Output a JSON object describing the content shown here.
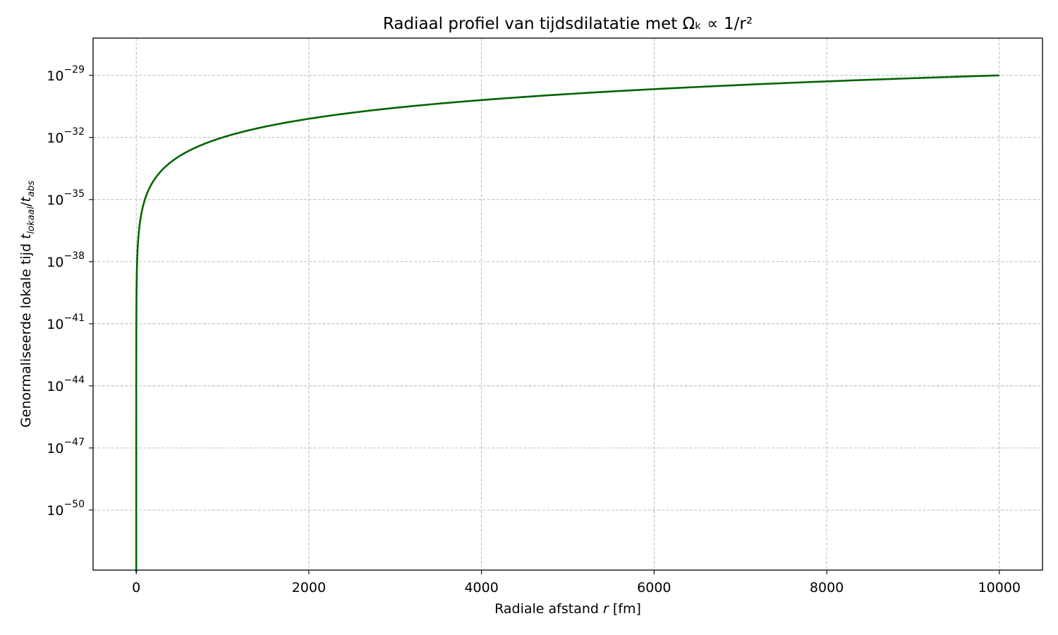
{
  "chart_data": {
    "type": "line",
    "title": "Radiaal profiel van tijdsdilatatie met Ωₖ ∝ 1/r²",
    "xlabel": "Radiale afstand r [fm]",
    "xlabel_parts": {
      "prefix": "Radiale afstand ",
      "var": "r",
      "suffix": " [fm]"
    },
    "ylabel": "Genormaliseerde lokale tijd t_lokaal/t_abs",
    "ylabel_parts": {
      "prefix": "Genormaliseerde lokale tijd ",
      "t1": "t",
      "sub1": "lokaal",
      "slash": "/",
      "t2": "t",
      "sub2": "abs"
    },
    "xscale": "linear",
    "yscale": "log",
    "xlim": [
      -500,
      10500
    ],
    "ylim_exp": [
      -52.9,
      -27.2
    ],
    "xticks": [
      0,
      2000,
      4000,
      6000,
      8000,
      10000
    ],
    "xtick_labels": [
      "0",
      "2000",
      "4000",
      "6000",
      "8000",
      "10000"
    ],
    "ytick_exponents": [
      -50,
      -47,
      -44,
      -41,
      -38,
      -35,
      -32,
      -29
    ],
    "ytick_labels": [
      {
        "base": "10",
        "exp": "−50"
      },
      {
        "base": "10",
        "exp": "−47"
      },
      {
        "base": "10",
        "exp": "−44"
      },
      {
        "base": "10",
        "exp": "−41"
      },
      {
        "base": "10",
        "exp": "−38"
      },
      {
        "base": "10",
        "exp": "−35"
      },
      {
        "base": "10",
        "exp": "−32"
      },
      {
        "base": "10",
        "exp": "−29"
      }
    ],
    "grid": true,
    "series": [
      {
        "color": "#006400",
        "curve": {
          "form": "log10_y = a + b*log10(r)",
          "a": -41.0,
          "b": 3.0,
          "r_min": 0.0001,
          "r_max": 10000
        }
      }
    ]
  }
}
